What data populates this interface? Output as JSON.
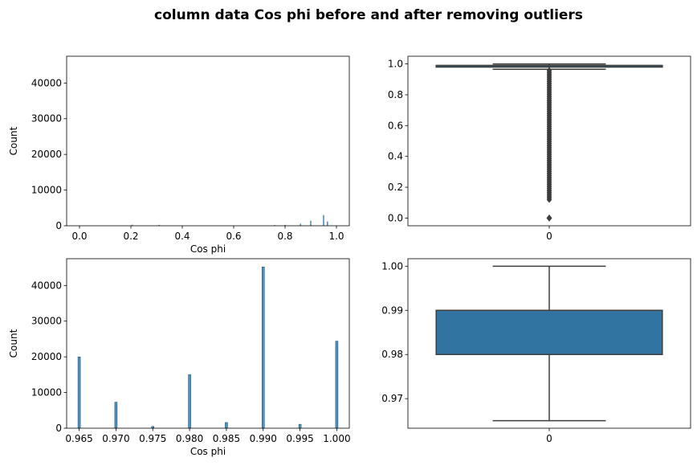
{
  "figure_title": "column data Cos phi before and after removing outliers",
  "colors": {
    "bar": "#1f77b4",
    "box_fill": "#3274a1",
    "box_line": "#3d3d3d"
  },
  "chart_data": [
    {
      "type": "bar",
      "subtype": "histogram",
      "xlabel": "Cos phi",
      "ylabel": "Count",
      "xlim": [
        -0.05,
        1.05
      ],
      "ylim": [
        0,
        47500
      ],
      "xticks": [
        0.0,
        0.2,
        0.4,
        0.6,
        0.8,
        1.0
      ],
      "xtick_labels": [
        "0.0",
        "0.2",
        "0.4",
        "0.6",
        "0.8",
        "1.0"
      ],
      "yticks": [
        0,
        10000,
        20000,
        30000,
        40000
      ],
      "ytick_labels": [
        "0",
        "10000",
        "20000",
        "30000",
        "40000"
      ],
      "bins": [
        {
          "x": 0.205,
          "count": 300
        },
        {
          "x": 0.31,
          "count": 250
        },
        {
          "x": 0.76,
          "count": 200
        },
        {
          "x": 0.8,
          "count": 250
        },
        {
          "x": 0.86,
          "count": 600
        },
        {
          "x": 0.9,
          "count": 1400
        },
        {
          "x": 0.95,
          "count": 3000
        },
        {
          "x": 0.965,
          "count": 1200
        }
      ]
    },
    {
      "type": "boxplot",
      "xtick_labels": [
        "0"
      ],
      "ylim": [
        -0.05,
        1.05
      ],
      "yticks": [
        0.0,
        0.2,
        0.4,
        0.6,
        0.8,
        1.0
      ],
      "ytick_labels": [
        "0.0",
        "0.2",
        "0.4",
        "0.6",
        "0.8",
        "1.0"
      ],
      "q1": 0.98,
      "median": 0.99,
      "q3": 0.99,
      "whisker_low": 0.965,
      "whisker_high": 1.0,
      "outliers_range": [
        0.11,
        0.96
      ],
      "outliers_extra": [
        0.0
      ]
    },
    {
      "type": "bar",
      "subtype": "histogram",
      "xlabel": "Cos phi",
      "ylabel": "Count",
      "xlim": [
        0.9633,
        1.0017
      ],
      "ylim": [
        0,
        47500
      ],
      "xticks": [
        0.965,
        0.97,
        0.975,
        0.98,
        0.985,
        0.99,
        0.995,
        1.0
      ],
      "xtick_labels": [
        "0.965",
        "0.970",
        "0.975",
        "0.980",
        "0.985",
        "0.990",
        "0.995",
        "1.000"
      ],
      "yticks": [
        0,
        10000,
        20000,
        30000,
        40000
      ],
      "ytick_labels": [
        "0",
        "10000",
        "20000",
        "30000",
        "40000"
      ],
      "bins": [
        {
          "x": 0.965,
          "count": 20000
        },
        {
          "x": 0.97,
          "count": 7300
        },
        {
          "x": 0.975,
          "count": 500
        },
        {
          "x": 0.98,
          "count": 15000
        },
        {
          "x": 0.985,
          "count": 1600
        },
        {
          "x": 0.99,
          "count": 45200
        },
        {
          "x": 0.995,
          "count": 1100
        },
        {
          "x": 1.0,
          "count": 24400
        }
      ]
    },
    {
      "type": "boxplot",
      "xtick_labels": [
        "0"
      ],
      "ylim": [
        0.9633,
        1.0017
      ],
      "yticks": [
        0.97,
        0.98,
        0.99,
        1.0
      ],
      "ytick_labels": [
        "0.97",
        "0.98",
        "0.99",
        "1.00"
      ],
      "q1": 0.98,
      "median": 0.99,
      "q3": 0.99,
      "whisker_low": 0.965,
      "whisker_high": 1.0
    }
  ]
}
